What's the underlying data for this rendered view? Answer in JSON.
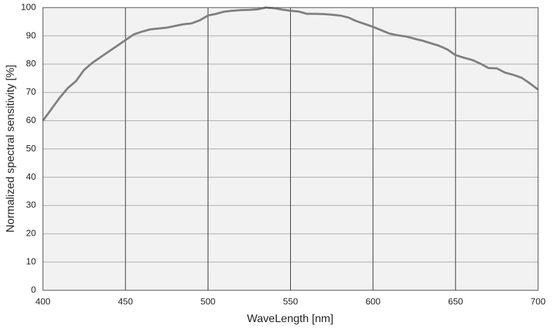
{
  "chart_data": {
    "type": "line",
    "xlabel": "WaveLength [nm]",
    "ylabel": "Normalized spectral sensitivity [%]",
    "x": [
      400,
      405,
      410,
      415,
      420,
      425,
      430,
      435,
      440,
      445,
      450,
      455,
      460,
      465,
      470,
      475,
      480,
      485,
      490,
      495,
      500,
      505,
      510,
      515,
      520,
      525,
      530,
      535,
      540,
      545,
      550,
      555,
      560,
      565,
      570,
      575,
      580,
      585,
      590,
      595,
      600,
      605,
      610,
      615,
      620,
      625,
      630,
      635,
      640,
      645,
      650,
      655,
      660,
      665,
      670,
      675,
      680,
      685,
      690,
      695,
      700
    ],
    "series": [
      {
        "color": "#7f7f7f",
        "values": [
          60,
          64,
          68,
          71.5,
          74,
          78,
          80.5,
          82.5,
          84.5,
          86.5,
          88.5,
          90.5,
          91.5,
          92.3,
          92.6,
          92.9,
          93.5,
          94.1,
          94.4,
          95.5,
          97.2,
          97.8,
          98.6,
          98.9,
          99.1,
          99.2,
          99.4,
          100,
          99.8,
          99.3,
          98.9,
          98.6,
          97.8,
          97.8,
          97.7,
          97.5,
          97.2,
          96.5,
          95.2,
          94.2,
          93.2,
          92,
          90.8,
          90.2,
          89.8,
          89,
          88.3,
          87.4,
          86.5,
          85.2,
          83.2,
          82.3,
          81.5,
          80.2,
          78.6,
          78.5,
          77,
          76.2,
          75.2,
          73.2,
          71
        ]
      }
    ],
    "xlim": [
      400,
      700
    ],
    "xticks": [
      400,
      450,
      500,
      550,
      600,
      650,
      700
    ],
    "ylim": [
      0,
      100
    ],
    "yticks": [
      0,
      10,
      20,
      30,
      40,
      50,
      60,
      70,
      80,
      90,
      100
    ],
    "grid": true
  }
}
